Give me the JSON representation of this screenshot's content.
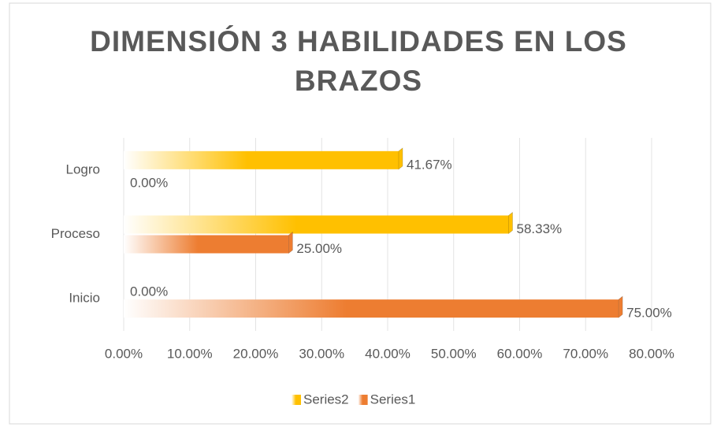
{
  "chart_data": {
    "type": "bar",
    "orientation": "horizontal",
    "title": "DIMENSIÓN 3 HABILIDADES EN LOS BRAZOS",
    "categories": [
      "Inicio",
      "Proceso",
      "Logro"
    ],
    "series": [
      {
        "name": "Series2",
        "color": "#ffc000",
        "values": [
          0,
          58.33,
          41.67
        ],
        "value_labels": [
          "0.00%",
          "58.33%",
          "41.67%"
        ]
      },
      {
        "name": "Series1",
        "color": "#ed7d31",
        "values": [
          75,
          25,
          0
        ],
        "value_labels": [
          "75.00%",
          "25.00%",
          "0.00%"
        ]
      }
    ],
    "xlim": [
      0,
      80
    ],
    "xticks": [
      {
        "value": 0,
        "label": "0.00%"
      },
      {
        "value": 10,
        "label": "10.00%"
      },
      {
        "value": 20,
        "label": "20.00%"
      },
      {
        "value": 30,
        "label": "30.00%"
      },
      {
        "value": 40,
        "label": "40.00%"
      },
      {
        "value": 50,
        "label": "50.00%"
      },
      {
        "value": 60,
        "label": "60.00%"
      },
      {
        "value": 70,
        "label": "70.00%"
      },
      {
        "value": 80,
        "label": "80.00%"
      }
    ],
    "grid": true,
    "legend": "bottom"
  }
}
